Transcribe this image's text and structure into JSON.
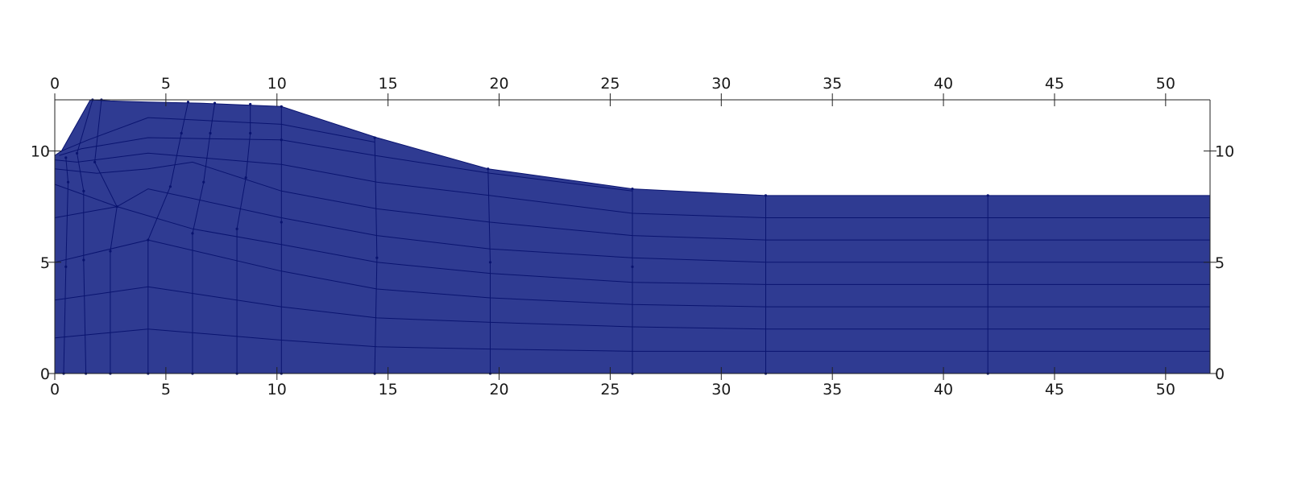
{
  "chart_data": {
    "type": "mesh",
    "xlim": [
      0,
      52
    ],
    "ylim": [
      0,
      12.3
    ],
    "x_ticks": [
      0,
      5,
      10,
      15,
      20,
      25,
      30,
      35,
      40,
      45,
      50
    ],
    "y_ticks": [
      0,
      5,
      10
    ],
    "fill_color": "#2f3b92",
    "line_color": "#0a1470",
    "boundary": [
      [
        0,
        0
      ],
      [
        52,
        0
      ],
      [
        52,
        8
      ],
      [
        32,
        8
      ],
      [
        26,
        8.3
      ],
      [
        19.5,
        9.2
      ],
      [
        14.5,
        10.6
      ],
      [
        10.2,
        12.0
      ],
      [
        6.5,
        12.15
      ],
      [
        4.2,
        12.2
      ],
      [
        2.5,
        12.25
      ],
      [
        1.6,
        12.3
      ],
      [
        0.3,
        10.0
      ],
      [
        0,
        9.8
      ]
    ],
    "vertical_lines": [
      [
        [
          0.4,
          0
        ],
        [
          0.5,
          4.8
        ],
        [
          0.6,
          8.6
        ],
        [
          0.5,
          9.7
        ]
      ],
      [
        [
          1.4,
          0
        ],
        [
          1.3,
          5.1
        ],
        [
          1.3,
          8.2
        ],
        [
          1.0,
          9.9
        ],
        [
          1.7,
          12.3
        ]
      ],
      [
        [
          2.5,
          0
        ],
        [
          2.5,
          5.5
        ],
        [
          2.8,
          7.5
        ],
        [
          1.8,
          9.5
        ],
        [
          2.1,
          12.3
        ]
      ],
      [
        [
          4.2,
          0
        ],
        [
          4.2,
          6.0
        ],
        [
          5.2,
          8.4
        ],
        [
          5.7,
          10.8
        ],
        [
          6.0,
          12.2
        ]
      ],
      [
        [
          6.2,
          0
        ],
        [
          6.2,
          6.3
        ],
        [
          6.7,
          8.6
        ],
        [
          7.0,
          10.8
        ],
        [
          7.2,
          12.15
        ]
      ],
      [
        [
          8.2,
          0
        ],
        [
          8.2,
          6.5
        ],
        [
          8.6,
          8.8
        ],
        [
          8.8,
          10.8
        ],
        [
          8.8,
          12.1
        ]
      ],
      [
        [
          10.2,
          0
        ],
        [
          10.2,
          6.8
        ],
        [
          10.2,
          10.5
        ],
        [
          10.2,
          12.0
        ]
      ],
      [
        [
          14.4,
          0
        ],
        [
          14.5,
          5.2
        ],
        [
          14.4,
          10.6
        ]
      ],
      [
        [
          19.6,
          0
        ],
        [
          19.6,
          5.0
        ],
        [
          19.5,
          9.2
        ]
      ],
      [
        [
          26.0,
          0
        ],
        [
          26.0,
          4.8
        ],
        [
          26.0,
          8.3
        ]
      ],
      [
        [
          32.0,
          0
        ],
        [
          32.0,
          8.0
        ]
      ],
      [
        [
          42.0,
          0
        ],
        [
          42.0,
          8.0
        ]
      ]
    ],
    "horizontal_lines": [
      [
        [
          0,
          1.6
        ],
        [
          4.2,
          2.0
        ],
        [
          10.2,
          1.5
        ],
        [
          14.5,
          1.2
        ],
        [
          19.6,
          1.1
        ],
        [
          26,
          1.0
        ],
        [
          32,
          1.0
        ],
        [
          52,
          1.0
        ]
      ],
      [
        [
          0,
          3.3
        ],
        [
          4.2,
          3.9
        ],
        [
          10.2,
          3.0
        ],
        [
          14.5,
          2.5
        ],
        [
          19.6,
          2.3
        ],
        [
          26,
          2.1
        ],
        [
          32,
          2.0
        ],
        [
          52,
          2.0
        ]
      ],
      [
        [
          0,
          5.0
        ],
        [
          4.2,
          6.0
        ],
        [
          10.2,
          4.6
        ],
        [
          14.5,
          3.8
        ],
        [
          19.6,
          3.4
        ],
        [
          26,
          3.1
        ],
        [
          32,
          3.0
        ],
        [
          52,
          3.0
        ]
      ],
      [
        [
          0,
          7.0
        ],
        [
          2.8,
          7.5
        ],
        [
          6.2,
          6.5
        ],
        [
          10.2,
          5.8
        ],
        [
          14.5,
          5.0
        ],
        [
          19.6,
          4.5
        ],
        [
          26,
          4.1
        ],
        [
          32,
          4.0
        ],
        [
          52,
          4.0
        ]
      ],
      [
        [
          0,
          8.5
        ],
        [
          2.8,
          7.5
        ],
        [
          4.2,
          8.3
        ],
        [
          10.2,
          7.0
        ],
        [
          14.5,
          6.2
        ],
        [
          19.6,
          5.6
        ],
        [
          26,
          5.2
        ],
        [
          32,
          5.0
        ],
        [
          52,
          5.0
        ]
      ],
      [
        [
          0,
          9.2
        ],
        [
          1.9,
          9.0
        ],
        [
          4.2,
          9.2
        ],
        [
          6.2,
          9.5
        ],
        [
          10.2,
          8.2
        ],
        [
          14.5,
          7.4
        ],
        [
          19.6,
          6.8
        ],
        [
          26,
          6.2
        ],
        [
          32,
          6.0
        ],
        [
          52,
          6.0
        ]
      ],
      [
        [
          0,
          9.6
        ],
        [
          1.0,
          9.5
        ],
        [
          4.2,
          9.9
        ],
        [
          10.2,
          9.4
        ],
        [
          14.5,
          8.6
        ],
        [
          19.6,
          8.0
        ],
        [
          26,
          7.2
        ],
        [
          32,
          7.0
        ],
        [
          52,
          7.0
        ]
      ],
      [
        [
          0.2,
          9.8
        ],
        [
          1.2,
          10.1
        ],
        [
          4.2,
          10.6
        ],
        [
          10.2,
          10.5
        ],
        [
          14.4,
          9.8
        ],
        [
          19.6,
          9.0
        ],
        [
          26,
          8.2
        ]
      ],
      [
        [
          0.3,
          10.0
        ],
        [
          1.5,
          10.5
        ],
        [
          4.2,
          11.5
        ],
        [
          10.2,
          11.2
        ],
        [
          14.4,
          10.4
        ]
      ]
    ]
  }
}
